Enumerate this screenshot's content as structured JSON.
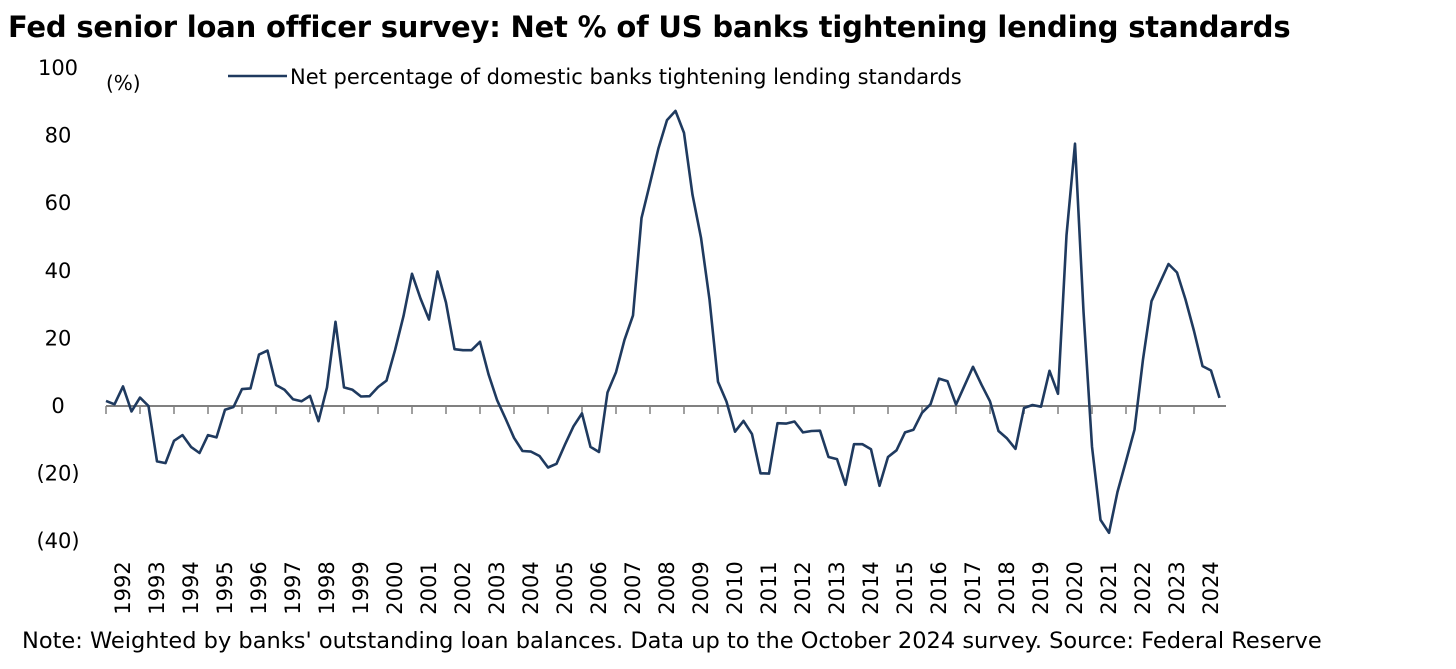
{
  "title": "Fed senior loan officer survey: Net % of US banks tightening lending standards",
  "note": "Note: Weighted by banks' outstanding loan balances. Data up to the October 2024 survey. Source: Federal Reserve",
  "chart_data": {
    "type": "line",
    "ylabel_unit": "(%)",
    "ylim": [
      -40,
      100
    ],
    "yticks": [
      100,
      80,
      60,
      40,
      20,
      0,
      -20,
      -40
    ],
    "ytick_labels": [
      "100",
      "80",
      "60",
      "40",
      "20",
      "0",
      "(20)",
      "(40)"
    ],
    "xlim": [
      1992,
      2025
    ],
    "xtick_labels": [
      "1992",
      "1993",
      "1994",
      "1995",
      "1996",
      "1997",
      "1998",
      "1999",
      "2000",
      "2001",
      "2002",
      "2003",
      "2004",
      "2005",
      "2006",
      "2007",
      "2008",
      "2009",
      "2010",
      "2011",
      "2012",
      "2013",
      "2014",
      "2015",
      "2016",
      "2017",
      "2018",
      "2019",
      "2020",
      "2021",
      "2022",
      "2023",
      "2024"
    ],
    "legend": "top-center",
    "grid": false,
    "colors": {
      "line": "#1f3a5f",
      "zero_line": "#808080",
      "axis": "#808080"
    },
    "series": [
      {
        "name": "Net percentage of domestic banks tightening lending standards",
        "points": [
          [
            1992.0,
            1.5
          ],
          [
            1992.25,
            0.5
          ],
          [
            1992.5,
            5.8
          ],
          [
            1992.75,
            -1.6
          ],
          [
            1993.0,
            2.5
          ],
          [
            1993.25,
            0.0
          ],
          [
            1993.5,
            -16.4
          ],
          [
            1993.75,
            -16.9
          ],
          [
            1994.0,
            -10.3
          ],
          [
            1994.25,
            -8.6
          ],
          [
            1994.5,
            -12.1
          ],
          [
            1994.75,
            -13.9
          ],
          [
            1995.0,
            -8.6
          ],
          [
            1995.25,
            -9.3
          ],
          [
            1995.5,
            -1.1
          ],
          [
            1995.75,
            -0.3
          ],
          [
            1996.0,
            5.0
          ],
          [
            1996.25,
            5.2
          ],
          [
            1996.5,
            15.2
          ],
          [
            1996.75,
            16.4
          ],
          [
            1997.0,
            6.2
          ],
          [
            1997.25,
            4.8
          ],
          [
            1997.5,
            2.0
          ],
          [
            1997.75,
            1.4
          ],
          [
            1998.0,
            3.0
          ],
          [
            1998.25,
            -4.5
          ],
          [
            1998.5,
            5.5
          ],
          [
            1998.75,
            24.9
          ],
          [
            1999.0,
            5.5
          ],
          [
            1999.25,
            4.8
          ],
          [
            1999.5,
            2.8
          ],
          [
            1999.75,
            2.9
          ],
          [
            2000.0,
            5.6
          ],
          [
            2000.25,
            7.5
          ],
          [
            2000.5,
            16.5
          ],
          [
            2000.75,
            26.6
          ],
          [
            2001.0,
            39.1
          ],
          [
            2001.25,
            31.8
          ],
          [
            2001.5,
            25.6
          ],
          [
            2001.75,
            39.8
          ],
          [
            2002.0,
            30.6
          ],
          [
            2002.25,
            16.8
          ],
          [
            2002.5,
            16.5
          ],
          [
            2002.75,
            16.5
          ],
          [
            2003.0,
            19.0
          ],
          [
            2003.25,
            9.4
          ],
          [
            2003.5,
            1.8
          ],
          [
            2003.75,
            -3.7
          ],
          [
            2004.0,
            -9.4
          ],
          [
            2004.25,
            -13.3
          ],
          [
            2004.5,
            -13.5
          ],
          [
            2004.75,
            -14.8
          ],
          [
            2005.0,
            -18.2
          ],
          [
            2005.25,
            -17.1
          ],
          [
            2005.5,
            -11.4
          ],
          [
            2005.75,
            -6.0
          ],
          [
            2006.0,
            -2.2
          ],
          [
            2006.25,
            -12.1
          ],
          [
            2006.5,
            -13.6
          ],
          [
            2006.75,
            4.0
          ],
          [
            2007.0,
            10.0
          ],
          [
            2007.25,
            19.6
          ],
          [
            2007.5,
            26.8
          ],
          [
            2007.75,
            55.6
          ],
          [
            2008.0,
            65.9
          ],
          [
            2008.25,
            76.3
          ],
          [
            2008.5,
            84.6
          ],
          [
            2008.75,
            87.3
          ],
          [
            2009.0,
            80.8
          ],
          [
            2009.25,
            62.5
          ],
          [
            2009.5,
            49.8
          ],
          [
            2009.75,
            31.5
          ],
          [
            2010.0,
            7.2
          ],
          [
            2010.25,
            1.3
          ],
          [
            2010.5,
            -7.6
          ],
          [
            2010.75,
            -4.4
          ],
          [
            2011.0,
            -8.3
          ],
          [
            2011.25,
            -19.9
          ],
          [
            2011.5,
            -20.0
          ],
          [
            2011.75,
            -5.1
          ],
          [
            2012.0,
            -5.2
          ],
          [
            2012.25,
            -4.6
          ],
          [
            2012.5,
            -7.8
          ],
          [
            2012.75,
            -7.4
          ],
          [
            2013.0,
            -7.3
          ],
          [
            2013.25,
            -15.1
          ],
          [
            2013.5,
            -15.7
          ],
          [
            2013.75,
            -23.3
          ],
          [
            2014.0,
            -11.3
          ],
          [
            2014.25,
            -11.3
          ],
          [
            2014.5,
            -12.8
          ],
          [
            2014.75,
            -23.6
          ],
          [
            2015.0,
            -15.1
          ],
          [
            2015.25,
            -13.1
          ],
          [
            2015.5,
            -7.8
          ],
          [
            2015.75,
            -7.0
          ],
          [
            2016.0,
            -2.0
          ],
          [
            2016.25,
            0.5
          ],
          [
            2016.5,
            8.1
          ],
          [
            2016.75,
            7.3
          ],
          [
            2017.0,
            0.4
          ],
          [
            2017.25,
            6.0
          ],
          [
            2017.5,
            11.6
          ],
          [
            2017.75,
            6.3
          ],
          [
            2018.0,
            1.4
          ],
          [
            2018.25,
            -7.4
          ],
          [
            2018.5,
            -9.6
          ],
          [
            2018.75,
            -12.7
          ],
          [
            2019.0,
            -0.6
          ],
          [
            2019.25,
            0.3
          ],
          [
            2019.5,
            -0.2
          ],
          [
            2019.75,
            10.4
          ],
          [
            2020.0,
            3.6
          ],
          [
            2020.25,
            50.5
          ],
          [
            2020.5,
            77.6
          ],
          [
            2020.75,
            28.0
          ],
          [
            2021.0,
            -12.0
          ],
          [
            2021.25,
            -33.7
          ],
          [
            2021.5,
            -37.5
          ],
          [
            2021.75,
            -25.4
          ],
          [
            2022.0,
            -16.3
          ],
          [
            2022.25,
            -7.0
          ],
          [
            2022.5,
            13.8
          ],
          [
            2022.75,
            31.0
          ],
          [
            2023.0,
            36.5
          ],
          [
            2023.25,
            42.0
          ],
          [
            2023.5,
            39.5
          ],
          [
            2023.75,
            31.5
          ],
          [
            2024.0,
            22.2
          ],
          [
            2024.25,
            11.8
          ],
          [
            2024.5,
            10.5
          ],
          [
            2024.75,
            2.4
          ]
        ]
      }
    ]
  }
}
